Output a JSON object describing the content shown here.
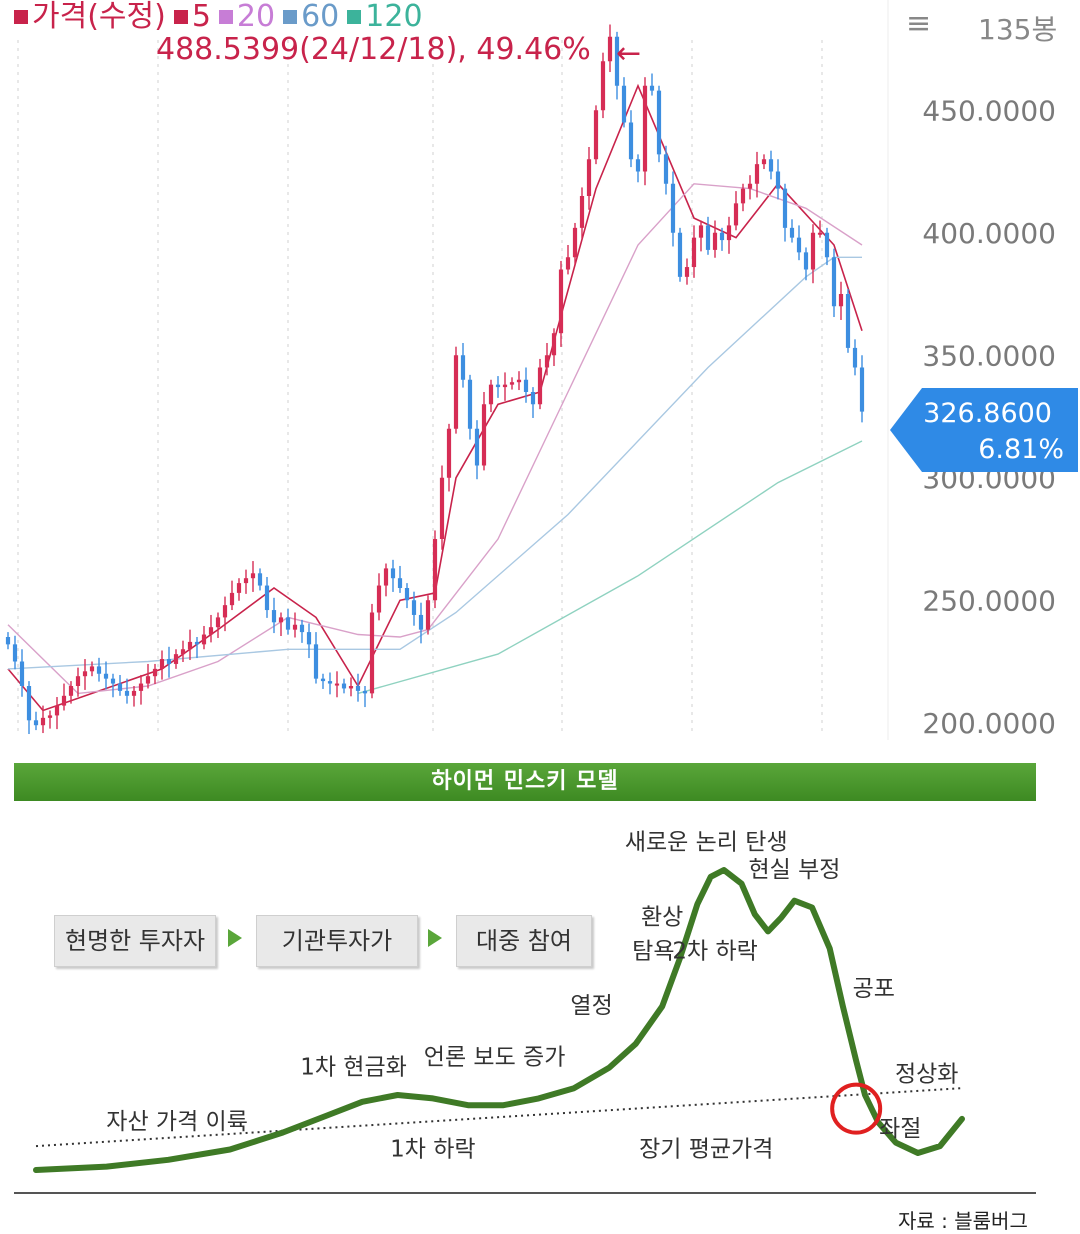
{
  "legend": {
    "items": [
      {
        "label": "가격(수정)",
        "color": "#c8234b"
      },
      {
        "label": "5",
        "color": "#c8234b"
      },
      {
        "label": "20",
        "color": "#c77dd6"
      },
      {
        "label": "60",
        "color": "#6a9bc9"
      },
      {
        "label": "120",
        "color": "#3cb39b"
      }
    ]
  },
  "highlight": {
    "text": "488.5399(24/12/18), 49.46%",
    "arrow": "←"
  },
  "toolbar": {
    "menu_icon": "hamburger-icon",
    "bars_label": "135봉"
  },
  "price_badge": {
    "price": "326.8600",
    "change": "6.81%",
    "color": "#2f8ae6"
  },
  "chart_data": [
    {
      "type": "candlestick",
      "title": "",
      "ylim": [
        195,
        495
      ],
      "yticks": [
        "200.0000",
        "250.0000",
        "300.0000",
        "350.0000",
        "400.0000",
        "450.0000"
      ],
      "last_price": 326.86,
      "period_high": 488.5399,
      "period_high_date": "24/12/18",
      "period_high_change_pct": 49.46,
      "colors": {
        "up": "#d62d55",
        "down": "#3d8ee0"
      },
      "close": [
        232,
        225,
        215,
        201,
        199,
        202,
        203,
        207,
        211,
        215,
        219,
        221,
        223,
        220,
        218,
        216,
        213,
        211,
        213,
        216,
        219,
        222,
        226,
        224,
        228,
        230,
        233,
        232,
        236,
        239,
        243,
        248,
        253,
        257,
        259,
        261,
        256,
        246,
        241,
        243,
        238,
        240,
        237,
        232,
        218,
        217,
        216,
        216,
        214,
        215,
        213,
        212,
        245,
        256,
        263,
        259,
        255,
        250,
        244,
        238,
        250,
        275,
        300,
        320,
        350,
        340,
        320,
        305,
        330,
        338,
        337,
        338,
        339,
        340,
        335,
        330,
        345,
        350,
        359,
        385,
        390,
        402,
        415,
        430,
        450,
        470,
        480,
        460,
        445,
        430,
        425,
        460,
        458,
        432,
        420,
        400,
        382,
        386,
        398,
        403,
        393,
        400,
        397,
        403,
        412,
        418,
        420,
        428,
        430,
        425,
        418,
        402,
        398,
        392,
        385,
        400,
        400,
        390,
        370,
        375,
        353,
        345,
        327
      ],
      "ma": [
        {
          "period": 5,
          "values": [
            [
              0,
              222
            ],
            [
              5,
              205
            ],
            [
              12,
              212
            ],
            [
              22,
              222
            ],
            [
              30,
              238
            ],
            [
              38,
              255
            ],
            [
              44,
              243
            ],
            [
              50,
              215
            ],
            [
              56,
              250
            ],
            [
              61,
              253
            ],
            [
              64,
              300
            ],
            [
              70,
              330
            ],
            [
              76,
              335
            ],
            [
              84,
              418
            ],
            [
              90,
              460
            ],
            [
              98,
              406
            ],
            [
              104,
              398
            ],
            [
              110,
              420
            ],
            [
              118,
              395
            ],
            [
              122,
              360
            ]
          ]
        },
        {
          "period": 20,
          "values": [
            [
              0,
              240
            ],
            [
              10,
              212
            ],
            [
              20,
              215
            ],
            [
              30,
              225
            ],
            [
              40,
              243
            ],
            [
              50,
              236
            ],
            [
              56,
              235
            ],
            [
              60,
              238
            ],
            [
              70,
              275
            ],
            [
              80,
              335
            ],
            [
              90,
              395
            ],
            [
              98,
              420
            ],
            [
              106,
              418
            ],
            [
              114,
              410
            ],
            [
              122,
              395
            ]
          ]
        },
        {
          "period": 60,
          "values": [
            [
              0,
              222
            ],
            [
              20,
              225
            ],
            [
              40,
              230
            ],
            [
              56,
              230
            ],
            [
              64,
              245
            ],
            [
              80,
              285
            ],
            [
              100,
              345
            ],
            [
              114,
              382
            ],
            [
              118,
              390
            ],
            [
              122,
              390
            ]
          ]
        },
        {
          "period": 120,
          "values": [
            [
              50,
              212
            ],
            [
              70,
              228
            ],
            [
              90,
              260
            ],
            [
              110,
              298
            ],
            [
              122,
              315
            ]
          ]
        }
      ]
    },
    {
      "type": "line",
      "title": "하이먼 민스키 모델",
      "xlabel": "",
      "ylabel": "",
      "series": [
        {
          "values": [
            [
              0,
              10
            ],
            [
              8,
              11
            ],
            [
              15,
              13
            ],
            [
              22,
              16
            ],
            [
              28,
              21
            ],
            [
              33,
              26
            ],
            [
              37,
              30
            ],
            [
              41,
              32
            ],
            [
              45,
              31
            ],
            [
              49,
              29
            ],
            [
              53,
              29
            ],
            [
              57,
              31
            ],
            [
              61,
              34
            ],
            [
              65,
              40
            ],
            [
              68,
              47
            ],
            [
              71,
              58
            ],
            [
              73,
              72
            ],
            [
              75,
              88
            ],
            [
              76.5,
              96
            ],
            [
              78,
              98
            ],
            [
              80,
              94
            ],
            [
              81.5,
              85
            ],
            [
              83,
              80
            ],
            [
              84.5,
              84
            ],
            [
              86,
              89
            ],
            [
              88,
              87
            ],
            [
              90,
              75
            ],
            [
              91.5,
              58
            ],
            [
              93,
              42
            ],
            [
              94,
              32
            ],
            [
              95.5,
              24
            ],
            [
              97.5,
              18
            ],
            [
              100,
              15
            ],
            [
              102.5,
              17
            ],
            [
              105,
              25
            ]
          ]
        },
        {
          "values": [
            [
              0,
              17
            ],
            [
              105,
              34
            ]
          ],
          "style": "dotted"
        }
      ],
      "stages": [
        "현명한 투자자",
        "기관투자가",
        "대중 참여"
      ],
      "annotations": [
        {
          "text": "자산 가격 이륙",
          "x": 16,
          "y": 22
        },
        {
          "text": "1차 현금화",
          "x": 36,
          "y": 38
        },
        {
          "text": "1차 하락",
          "x": 45,
          "y": 14
        },
        {
          "text": "언론 보도 증가",
          "x": 52,
          "y": 41
        },
        {
          "text": "열정",
          "x": 63,
          "y": 56
        },
        {
          "text": "환상",
          "x": 71,
          "y": 82
        },
        {
          "text": "탐욕",
          "x": 70,
          "y": 72
        },
        {
          "text": "새로운 논리 탄생",
          "x": 76,
          "y": 104
        },
        {
          "text": "2차 하락",
          "x": 77,
          "y": 72
        },
        {
          "text": "현실 부정",
          "x": 86,
          "y": 96
        },
        {
          "text": "공포",
          "x": 95,
          "y": 61
        },
        {
          "text": "좌절",
          "x": 98,
          "y": 20
        },
        {
          "text": "정상화",
          "x": 101,
          "y": 36
        },
        {
          "text": "장기 평균가격",
          "x": 76,
          "y": 14
        }
      ],
      "marker": {
        "type": "circle",
        "x": 93,
        "y": 28,
        "color": "#e02020"
      },
      "source": "자료 : 블룸버그",
      "colors": {
        "curve": "#3f7a26",
        "banner": "#4c9a2e"
      }
    }
  ]
}
